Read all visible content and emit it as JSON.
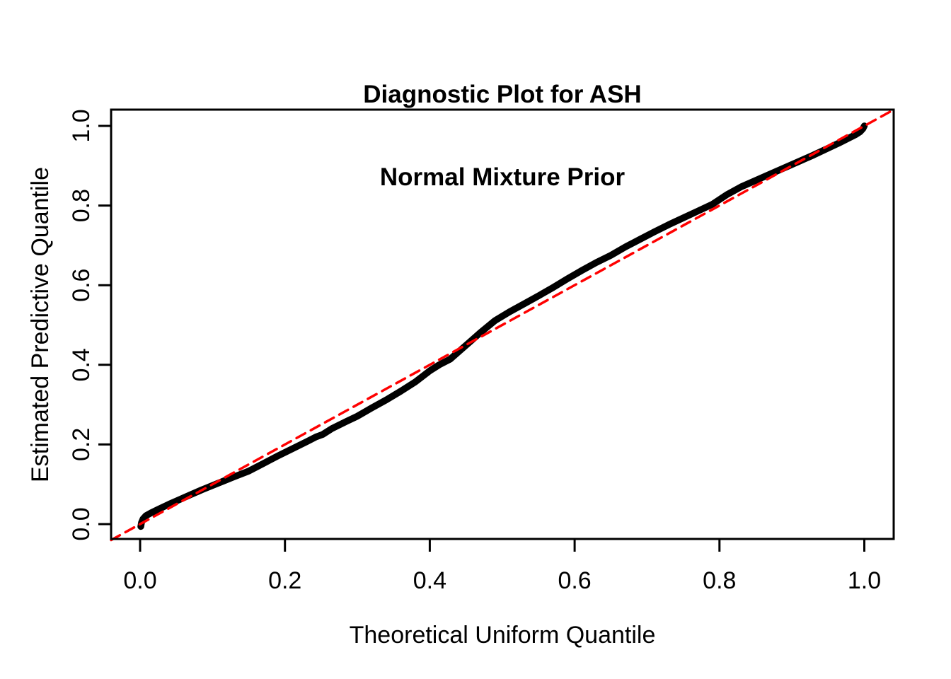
{
  "chart_data": {
    "type": "line",
    "title_lines": [
      "Diagnostic Plot for ASH",
      "Normal Mixture Prior"
    ],
    "xlabel": "Theoretical Uniform Quantile",
    "ylabel": "Estimated Predictive Quantile",
    "xlim": [
      -0.04,
      1.04
    ],
    "ylim": [
      -0.04,
      1.04
    ],
    "x_ticks": [
      0.0,
      0.2,
      0.4,
      0.6,
      0.8,
      1.0
    ],
    "y_ticks": [
      0.0,
      0.2,
      0.4,
      0.6,
      0.8,
      1.0
    ],
    "tick_decimals": 1,
    "grid": false,
    "legend": "none",
    "colors": {
      "background": "#FFFFFF",
      "axis": "#000000",
      "qq_curve": "#000000",
      "reference_line": "#FF0000"
    },
    "series": [
      {
        "name": "estimated-predictive-quantile-curve",
        "style": "solid",
        "color": "#000000",
        "line_width": 9.5,
        "points": [
          [
            0.001,
            -0.006
          ],
          [
            0.002,
            0.004
          ],
          [
            0.004,
            0.013
          ],
          [
            0.008,
            0.021
          ],
          [
            0.015,
            0.028
          ],
          [
            0.025,
            0.037
          ],
          [
            0.04,
            0.05
          ],
          [
            0.055,
            0.062
          ],
          [
            0.07,
            0.074
          ],
          [
            0.085,
            0.086
          ],
          [
            0.1,
            0.097
          ],
          [
            0.115,
            0.108
          ],
          [
            0.13,
            0.119
          ],
          [
            0.15,
            0.133
          ],
          [
            0.17,
            0.152
          ],
          [
            0.19,
            0.171
          ],
          [
            0.21,
            0.189
          ],
          [
            0.23,
            0.207
          ],
          [
            0.243,
            0.219
          ],
          [
            0.252,
            0.225
          ],
          [
            0.265,
            0.24
          ],
          [
            0.285,
            0.258
          ],
          [
            0.3,
            0.271
          ],
          [
            0.32,
            0.292
          ],
          [
            0.34,
            0.312
          ],
          [
            0.36,
            0.334
          ],
          [
            0.38,
            0.357
          ],
          [
            0.4,
            0.385
          ],
          [
            0.413,
            0.4
          ],
          [
            0.428,
            0.414
          ],
          [
            0.44,
            0.433
          ],
          [
            0.455,
            0.457
          ],
          [
            0.47,
            0.481
          ],
          [
            0.49,
            0.511
          ],
          [
            0.51,
            0.533
          ],
          [
            0.53,
            0.553
          ],
          [
            0.55,
            0.573
          ],
          [
            0.57,
            0.594
          ],
          [
            0.59,
            0.616
          ],
          [
            0.61,
            0.637
          ],
          [
            0.63,
            0.657
          ],
          [
            0.65,
            0.675
          ],
          [
            0.67,
            0.696
          ],
          [
            0.69,
            0.715
          ],
          [
            0.71,
            0.734
          ],
          [
            0.73,
            0.752
          ],
          [
            0.75,
            0.769
          ],
          [
            0.77,
            0.786
          ],
          [
            0.79,
            0.803
          ],
          [
            0.81,
            0.827
          ],
          [
            0.83,
            0.847
          ],
          [
            0.85,
            0.863
          ],
          [
            0.87,
            0.879
          ],
          [
            0.89,
            0.895
          ],
          [
            0.91,
            0.911
          ],
          [
            0.93,
            0.927
          ],
          [
            0.95,
            0.944
          ],
          [
            0.965,
            0.957
          ],
          [
            0.978,
            0.969
          ],
          [
            0.988,
            0.978
          ],
          [
            0.994,
            0.985
          ],
          [
            0.998,
            0.993
          ],
          [
            1.0,
            1.0
          ]
        ]
      },
      {
        "name": "reference-diagonal-y-equals-x",
        "style": "dashed",
        "color": "#FF0000",
        "line_width": 3.5,
        "dash_pattern": [
          14,
          9
        ],
        "points": [
          [
            -0.04,
            -0.04
          ],
          [
            1.04,
            1.04
          ]
        ]
      }
    ]
  }
}
